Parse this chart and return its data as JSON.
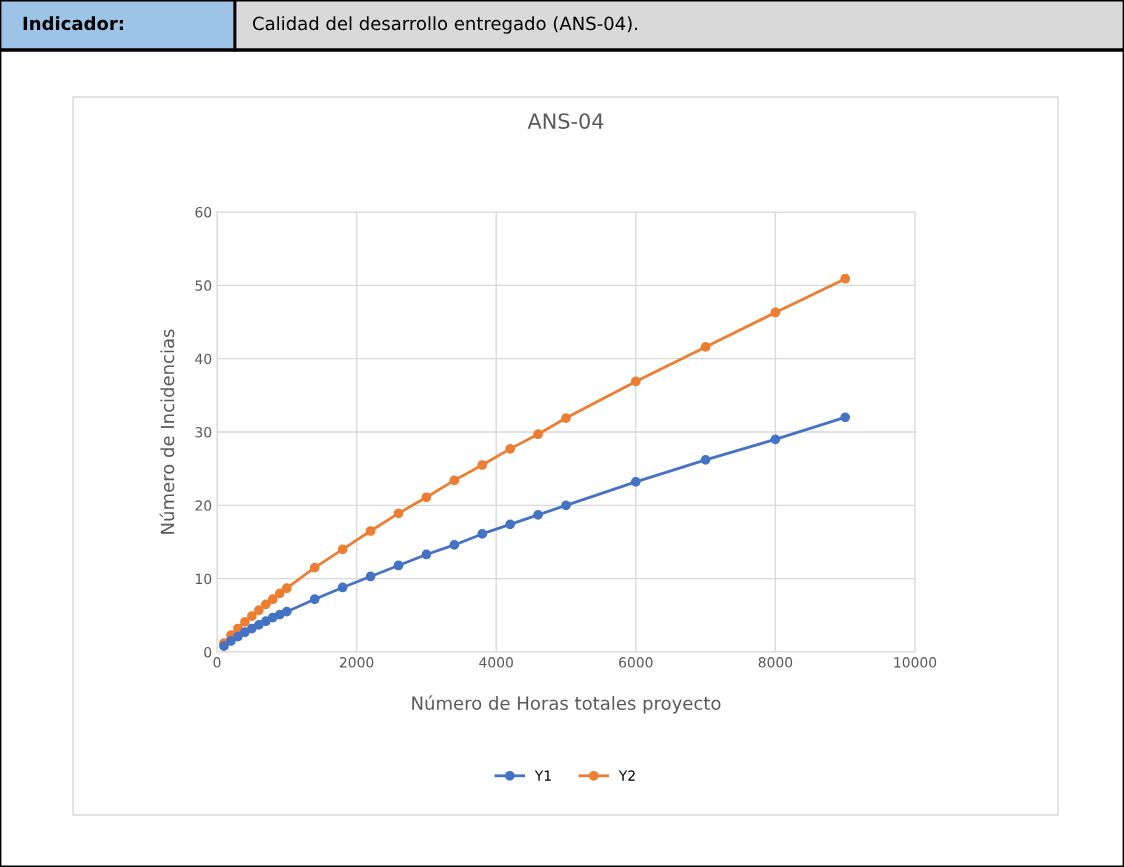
{
  "chart_data": {
    "type": "line",
    "title": "ANS-04",
    "xlabel": "Número de Horas totales proyecto",
    "ylabel": "Número de Incidencias",
    "annotations": [
      "Indicador:",
      "Calidad del desarrollo entregado (ANS-04)."
    ],
    "x": [
      100,
      200,
      300,
      400,
      500,
      600,
      700,
      800,
      900,
      1000,
      1400,
      1800,
      2200,
      2600,
      3000,
      3400,
      3800,
      4200,
      4600,
      5000,
      6000,
      7000,
      8000,
      9000
    ],
    "series": [
      {
        "name": "Y1",
        "color": "#4472c4",
        "values": [
          0.8,
          1.5,
          2.1,
          2.7,
          3.2,
          3.7,
          4.2,
          4.7,
          5.1,
          5.5,
          7.2,
          8.8,
          10.3,
          11.8,
          13.3,
          14.6,
          16.1,
          17.4,
          18.7,
          20,
          23.2,
          26.2,
          29,
          32
        ]
      },
      {
        "name": "Y2",
        "color": "#ed7d31",
        "values": [
          1.2,
          2.3,
          3.2,
          4.1,
          4.9,
          5.7,
          6.5,
          7.2,
          8,
          8.7,
          11.5,
          14,
          16.5,
          18.9,
          21.1,
          23.4,
          25.5,
          27.7,
          29.7,
          31.9,
          36.9,
          41.6,
          46.3,
          50.9
        ]
      }
    ],
    "xlim": [
      0,
      10000
    ],
    "xticks": [
      0,
      2000,
      4000,
      6000,
      8000,
      10000
    ],
    "ylim": [
      0,
      60
    ],
    "yticks": [
      0,
      10,
      20,
      30,
      40,
      50,
      60
    ],
    "grid": true,
    "legend": "bottom",
    "marker": "circle",
    "line_style": "solid"
  }
}
